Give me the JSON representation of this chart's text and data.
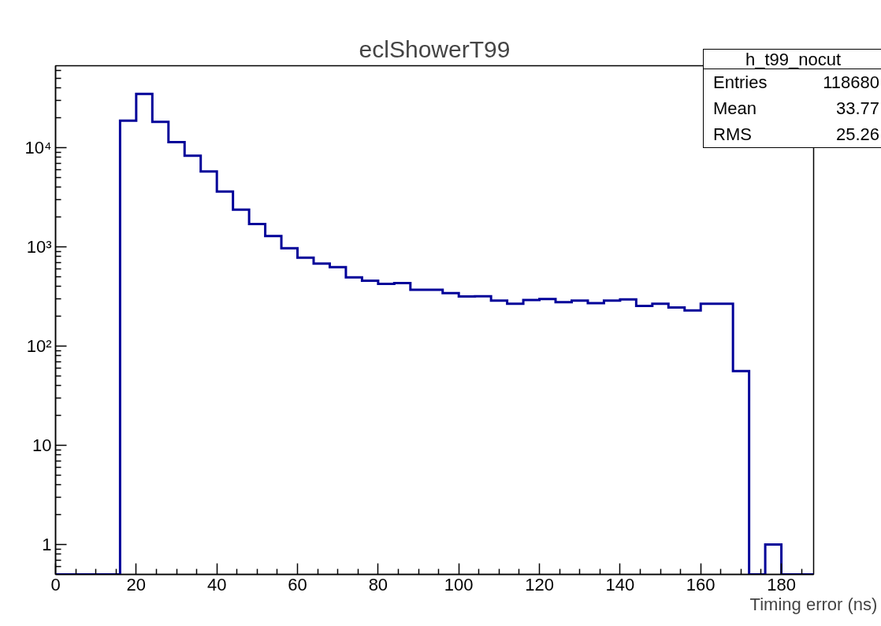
{
  "chart_data": {
    "type": "histogram",
    "title": "eclShowerT99",
    "xlabel": "Timing error (ns)",
    "bins": [
      0,
      4,
      8,
      12,
      16,
      20,
      24,
      28,
      32,
      36,
      40,
      44,
      48,
      52,
      56,
      60,
      64,
      68,
      72,
      76,
      80,
      84,
      88,
      92,
      96,
      100,
      104,
      108,
      112,
      116,
      120,
      124,
      128,
      132,
      136,
      140,
      144,
      148,
      152,
      156,
      160,
      164,
      168,
      172,
      176,
      180,
      184,
      188
    ],
    "values": [
      null,
      null,
      null,
      null,
      18700,
      34800,
      18200,
      11400,
      8300,
      5750,
      3610,
      2370,
      1700,
      1285,
      970,
      780,
      678,
      625,
      493,
      456,
      424,
      432,
      370,
      370,
      343,
      317,
      318,
      288,
      267,
      292,
      298,
      277,
      288,
      271,
      288,
      296,
      254,
      267,
      245,
      229,
      267,
      268,
      56,
      null,
      1,
      null,
      null
    ],
    "color": "#000099",
    "log": "y",
    "xlim": [
      0,
      188
    ],
    "ylim": [
      0.5,
      67000
    ],
    "xticks": [
      0,
      20,
      40,
      60,
      80,
      100,
      120,
      140,
      160,
      180,
      {
        "value": 5,
        "label": null
      },
      {
        "value": 10,
        "label": null
      },
      {
        "value": 15,
        "label": null
      },
      {
        "value": 25,
        "label": null
      },
      {
        "value": 30,
        "label": null
      },
      {
        "value": 35,
        "label": null
      },
      {
        "value": 45,
        "label": null
      },
      {
        "value": 50,
        "label": null
      },
      {
        "value": 55,
        "label": null
      },
      {
        "value": 65,
        "label": null
      },
      {
        "value": 70,
        "label": null
      },
      {
        "value": 75,
        "label": null
      },
      {
        "value": 85,
        "label": null
      },
      {
        "value": 90,
        "label": null
      },
      {
        "value": 95,
        "label": null
      },
      {
        "value": 105,
        "label": null
      },
      {
        "value": 110,
        "label": null
      },
      {
        "value": 115,
        "label": null
      },
      {
        "value": 125,
        "label": null
      },
      {
        "value": 130,
        "label": null
      },
      {
        "value": 135,
        "label": null
      },
      {
        "value": 145,
        "label": null
      },
      {
        "value": 150,
        "label": null
      },
      {
        "value": 155,
        "label": null
      },
      {
        "value": 165,
        "label": null
      },
      {
        "value": 170,
        "label": null
      },
      {
        "value": 175,
        "label": null
      },
      {
        "value": 185,
        "label": null
      }
    ],
    "yticks": [
      1,
      10,
      {
        "value": 100,
        "label": "10²"
      },
      {
        "value": 1000,
        "label": "10³"
      },
      {
        "value": 10000,
        "label": "10⁴"
      },
      {
        "value": 0.6,
        "label": null
      },
      {
        "value": 0.7,
        "label": null
      },
      {
        "value": 0.8,
        "label": null
      },
      {
        "value": 0.9,
        "label": null
      },
      {
        "value": 2,
        "label": null
      },
      {
        "value": 3,
        "label": null
      },
      {
        "value": 4,
        "label": null
      },
      {
        "value": 5,
        "label": null
      },
      {
        "value": 6,
        "label": null
      },
      {
        "value": 7,
        "label": null
      },
      {
        "value": 8,
        "label": null
      },
      {
        "value": 9,
        "label": null
      },
      {
        "value": 20,
        "label": null
      },
      {
        "value": 30,
        "label": null
      },
      {
        "value": 40,
        "label": null
      },
      {
        "value": 50,
        "label": null
      },
      {
        "value": 60,
        "label": null
      },
      {
        "value": 70,
        "label": null
      },
      {
        "value": 80,
        "label": null
      },
      {
        "value": 90,
        "label": null
      },
      {
        "value": 200,
        "label": null
      },
      {
        "value": 300,
        "label": null
      },
      {
        "value": 400,
        "label": null
      },
      {
        "value": 500,
        "label": null
      },
      {
        "value": 600,
        "label": null
      },
      {
        "value": 700,
        "label": null
      },
      {
        "value": 800,
        "label": null
      },
      {
        "value": 900,
        "label": null
      },
      {
        "value": 2000,
        "label": null
      },
      {
        "value": 3000,
        "label": null
      },
      {
        "value": 4000,
        "label": null
      },
      {
        "value": 5000,
        "label": null
      },
      {
        "value": 6000,
        "label": null
      },
      {
        "value": 7000,
        "label": null
      },
      {
        "value": 8000,
        "label": null
      },
      {
        "value": 9000,
        "label": null
      },
      {
        "value": 20000,
        "label": null
      },
      {
        "value": 30000,
        "label": null
      },
      {
        "value": 40000,
        "label": null
      },
      {
        "value": 50000,
        "label": null
      },
      {
        "value": 60000,
        "label": null
      }
    ],
    "grid": false,
    "annotations": [
      "h_t99_nocut",
      "Entries",
      "118680",
      "Mean",
      "33.77",
      "RMS",
      "25.26"
    ]
  }
}
